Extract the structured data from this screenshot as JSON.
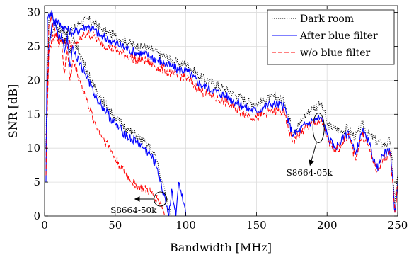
{
  "chart_data": {
    "type": "line",
    "title": "",
    "xlabel": "Bandwidth [MHz]",
    "ylabel": "SNR [dB]",
    "xlim": [
      0,
      250
    ],
    "ylim": [
      0,
      31
    ],
    "xticks": [
      0,
      50,
      100,
      150,
      200,
      250
    ],
    "yticks": [
      0,
      5,
      10,
      15,
      20,
      25,
      30
    ],
    "grid": true,
    "legend_position": "top-right",
    "series": [
      {
        "name": "Dark room",
        "group": "S8664-05k",
        "color": "#000000",
        "style": "dotted",
        "x": [
          1,
          3,
          5,
          8,
          12,
          16,
          20,
          25,
          30,
          35,
          40,
          45,
          50,
          55,
          60,
          65,
          70,
          75,
          80,
          85,
          90,
          95,
          100,
          105,
          110,
          115,
          120,
          125,
          130,
          135,
          140,
          145,
          150,
          155,
          160,
          165,
          170,
          173,
          176,
          180,
          185,
          190,
          195,
          198,
          200,
          205,
          210,
          215,
          220,
          225,
          230,
          235,
          240,
          245,
          248,
          250
        ],
        "y": [
          12,
          26,
          27,
          28,
          27.5,
          27,
          27.5,
          28.5,
          29,
          28.5,
          27.5,
          27,
          26.5,
          26,
          25.5,
          25,
          25,
          24.5,
          24,
          23.5,
          23,
          22.5,
          22.5,
          21.5,
          20.5,
          20,
          19.5,
          19,
          18.5,
          17.8,
          17.3,
          16.8,
          16.5,
          17,
          17.5,
          17.5,
          17,
          14.5,
          12.5,
          13.5,
          15,
          16,
          16.5,
          15.5,
          13.5,
          13,
          12.5,
          13,
          11.5,
          13.5,
          12,
          11,
          10.5,
          11,
          2,
          6
        ]
      },
      {
        "name": "After blue filter",
        "group": "S8664-05k",
        "color": "#0000ff",
        "style": "solid",
        "x": [
          1,
          3,
          5,
          8,
          12,
          16,
          20,
          25,
          30,
          35,
          40,
          45,
          50,
          55,
          60,
          65,
          70,
          75,
          80,
          85,
          90,
          95,
          100,
          105,
          110,
          115,
          120,
          125,
          130,
          135,
          140,
          145,
          150,
          155,
          160,
          165,
          170,
          173,
          176,
          180,
          185,
          190,
          195,
          198,
          200,
          205,
          210,
          215,
          220,
          225,
          230,
          235,
          240,
          245,
          248,
          250
        ],
        "y": [
          10,
          25,
          28,
          29,
          28,
          27.5,
          27,
          27.5,
          28,
          27.5,
          26.5,
          26,
          25.5,
          25,
          24.5,
          24,
          24,
          23.5,
          23,
          22.5,
          22,
          21.5,
          21.5,
          20.5,
          19.5,
          19,
          18.5,
          18,
          17.5,
          16.8,
          16.3,
          15.8,
          15.5,
          16,
          16.5,
          16.5,
          16,
          13.5,
          12,
          12.5,
          13.5,
          14,
          14.5,
          13.5,
          12,
          10,
          11,
          12.5,
          9,
          12.5,
          10.5,
          7,
          9,
          9.5,
          0.5,
          5
        ]
      },
      {
        "name": "w/o blue filter",
        "group": "S8664-05k",
        "color": "#ff0000",
        "style": "dashed",
        "x": [
          1,
          3,
          5,
          8,
          12,
          16,
          20,
          25,
          30,
          35,
          40,
          45,
          50,
          55,
          60,
          65,
          70,
          75,
          80,
          85,
          90,
          95,
          100,
          105,
          110,
          115,
          120,
          125,
          130,
          135,
          140,
          145,
          150,
          155,
          160,
          165,
          170,
          173,
          176,
          180,
          185,
          190,
          195,
          198,
          200,
          205,
          210,
          215,
          220,
          225,
          230,
          235,
          240,
          245,
          248,
          250
        ],
        "y": [
          8,
          24,
          26,
          26.5,
          26,
          25.5,
          25,
          26,
          27,
          26.5,
          25.5,
          25,
          24.5,
          24,
          23.5,
          23,
          23,
          22.5,
          22,
          21.5,
          21,
          20.5,
          20.5,
          19.5,
          18.5,
          18,
          17.5,
          17,
          16.5,
          15.8,
          15.3,
          14.8,
          14.5,
          15,
          15.5,
          15.5,
          15,
          12.5,
          11,
          12,
          13,
          13.5,
          14,
          13,
          11.5,
          9.5,
          10.5,
          12,
          8.5,
          12,
          10,
          6.5,
          8.5,
          9,
          0.5,
          4.5
        ]
      },
      {
        "name": "Dark room",
        "group": "S8664-50k",
        "color": "#000000",
        "style": "dotted",
        "x": [
          1,
          3,
          5,
          8,
          10,
          12,
          14,
          16,
          18,
          20,
          25,
          30,
          35,
          40,
          45,
          50,
          55,
          60,
          65,
          70,
          75,
          80,
          83,
          85,
          88,
          90
        ],
        "y": [
          10,
          29,
          30,
          28,
          27,
          27.5,
          25,
          28,
          24,
          26,
          24,
          21.5,
          19,
          17.5,
          16,
          14.5,
          13.5,
          12.5,
          12,
          11,
          10,
          8,
          5,
          4,
          1,
          0
        ]
      },
      {
        "name": "After blue filter",
        "group": "S8664-50k",
        "color": "#0000ff",
        "style": "solid",
        "x": [
          1,
          2,
          4,
          6,
          8,
          10,
          12,
          14,
          16,
          18,
          20,
          25,
          30,
          35,
          40,
          45,
          50,
          55,
          60,
          65,
          70,
          75,
          80,
          83,
          85,
          88,
          90,
          93,
          95,
          97,
          100
        ],
        "y": [
          5,
          29,
          30,
          29,
          28,
          26,
          27,
          24,
          27,
          22,
          25,
          22.5,
          20.5,
          18,
          16.5,
          15,
          13.5,
          12.5,
          11.5,
          11,
          10,
          9,
          7,
          4,
          3,
          0,
          4,
          0,
          5,
          3,
          0
        ]
      },
      {
        "name": "w/o blue filter",
        "group": "S8664-50k",
        "color": "#ff0000",
        "style": "dashed",
        "x": [
          1,
          3,
          5,
          8,
          10,
          12,
          14,
          16,
          18,
          20,
          25,
          30,
          35,
          40,
          45,
          50,
          55,
          60,
          65,
          70,
          75,
          80,
          83,
          85
        ],
        "y": [
          6,
          28,
          29,
          27,
          25,
          26,
          21,
          25,
          20,
          23,
          20,
          17,
          14,
          12,
          10.5,
          8.5,
          7,
          5.5,
          4.5,
          4,
          3.5,
          2.5,
          1.5,
          0
        ]
      }
    ],
    "annotations": [
      {
        "text": "S8664-05k",
        "ellipse_center": [
          194,
          13
        ],
        "arrow_to": [
          188,
          7.5
        ]
      },
      {
        "text": "S8664-50k",
        "ellipse_center": [
          82,
          2.5
        ],
        "arrow_to": [
          64,
          2.5
        ]
      }
    ]
  }
}
